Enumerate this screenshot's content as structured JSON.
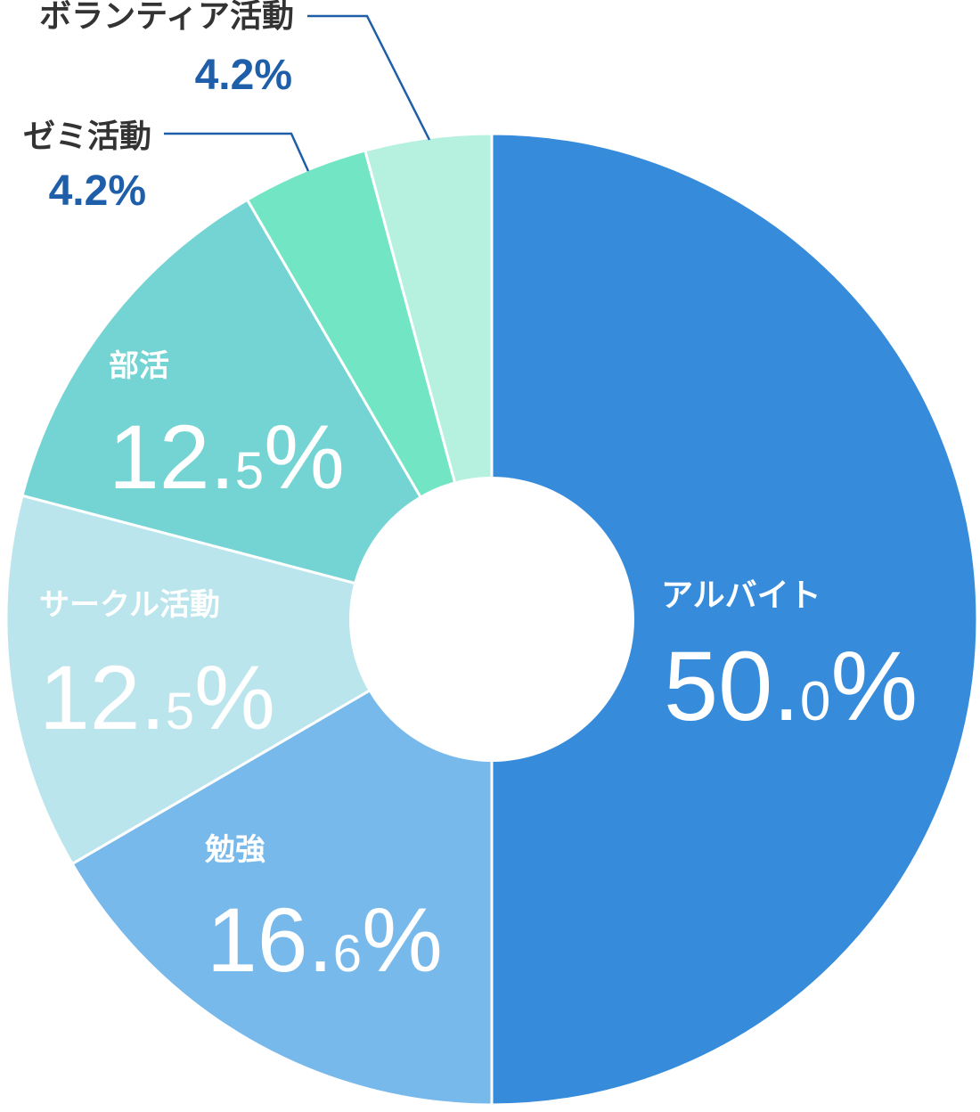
{
  "chart_data": {
    "type": "pie",
    "variant": "donut",
    "start": "12 o'clock, clockwise",
    "slices": [
      {
        "label": "アルバイト",
        "value": 50.0,
        "display": {
          "int": "50.",
          "dec": "0",
          "pct": "%"
        },
        "color": "#368BDB",
        "label_color": "#ffffff",
        "label_placement": "inside"
      },
      {
        "label": "勉強",
        "value": 16.6,
        "display": {
          "int": "16.",
          "dec": "6",
          "pct": "%"
        },
        "color": "#78B9EC",
        "label_color": "#ffffff",
        "label_placement": "inside"
      },
      {
        "label": "サークル活動",
        "value": 12.5,
        "display": {
          "int": "12.",
          "dec": "5",
          "pct": "%"
        },
        "color": "#BBE5EC",
        "label_color": "#ffffff",
        "label_placement": "inside"
      },
      {
        "label": "部活",
        "value": 12.5,
        "display": {
          "int": "12.",
          "dec": "5",
          "pct": "%"
        },
        "color": "#74D4D3",
        "label_color": "#ffffff",
        "label_placement": "inside"
      },
      {
        "label": "ゼミ活動",
        "value": 4.2,
        "display": {
          "int": "4.2",
          "dec": "",
          "pct": "%"
        },
        "color": "#72E5C4",
        "label_color": "#1F5EA8",
        "label_placement": "outside-leader"
      },
      {
        "label": "ボランティア活動",
        "value": 4.2,
        "display": {
          "int": "4.2",
          "dec": "",
          "pct": "%"
        },
        "color": "#B6F0DF",
        "label_color": "#1F5EA8",
        "label_placement": "outside-leader"
      }
    ],
    "outside_label_name_color": "#333333",
    "leader_color": "#1F5EA8"
  }
}
